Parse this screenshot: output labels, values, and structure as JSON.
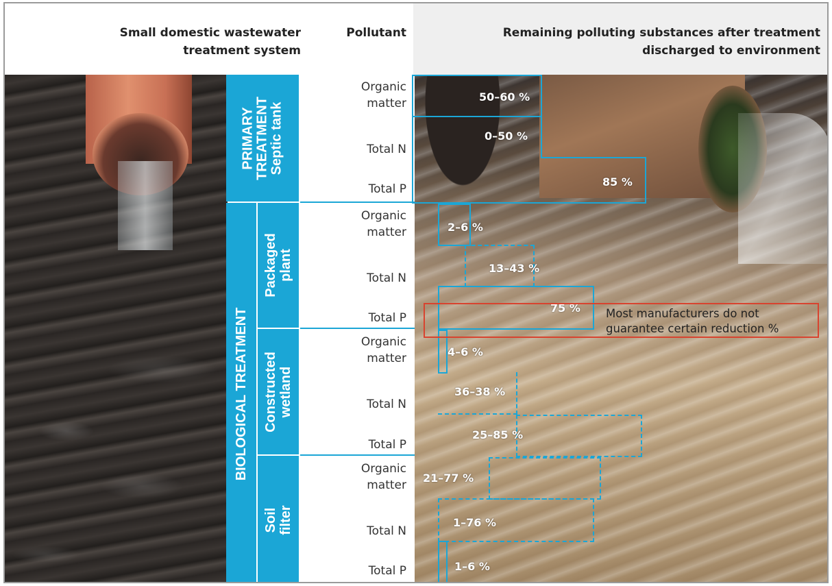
{
  "header": {
    "system_title_line1": "Small domestic wastewater",
    "system_title_line2": "treatment  system",
    "pollutant_title": "Pollutant",
    "remaining_title_line1": "Remaining polluting substances after treatment",
    "remaining_title_line2": "discharged to environment"
  },
  "categories": {
    "primary_line1": "PRIMARY",
    "primary_line2": "TREATMENT",
    "septic_tank": "Septic tank",
    "biological": "BIOLOGICAL TREATMENT",
    "packaged_line1": "Packaged",
    "packaged_line2": "plant",
    "wetland_line1": "Constructed",
    "wetland_line2": "wetland",
    "soil_line1": "Soil",
    "soil_line2": "filter"
  },
  "pollutants": {
    "organic_line1": "Organic",
    "organic_line2": "matter",
    "total_n": "Total N",
    "total_p": "Total P"
  },
  "values": {
    "septic_organic": "50–60 %",
    "septic_n": "0–50 %",
    "septic_p": "85 %",
    "packaged_organic": "2–6 %",
    "packaged_n": "13–43 %",
    "packaged_p": "75 %",
    "wetland_organic": "4–6 %",
    "wetland_n": "36–38 %",
    "wetland_p": "25–85 %",
    "soil_organic": "21–77 %",
    "soil_n": "1–76 %",
    "soil_p": "1–6 %"
  },
  "note": {
    "line1": "Most manufacturers do not",
    "line2": "guarantee certain reduction %"
  },
  "colors": {
    "accent_blue": "#1ba6d6",
    "note_red": "#d8432f"
  }
}
